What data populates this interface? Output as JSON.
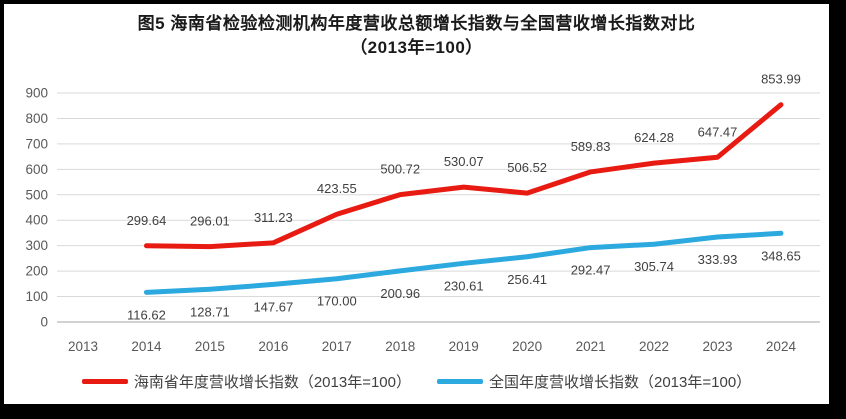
{
  "title": {
    "line1": "图5  海南省检验检测机构年度营收总额增长指数与全国营收增长指数对比",
    "line2": "（2013年=100）"
  },
  "chart_data": {
    "type": "line",
    "title": "图5 海南省检验检测机构年度营收总额增长指数与全国营收增长指数对比（2013年=100）",
    "categories": [
      "2013",
      "2014",
      "2015",
      "2016",
      "2017",
      "2018",
      "2019",
      "2020",
      "2021",
      "2022",
      "2023",
      "2024"
    ],
    "y_ticks": [
      0,
      100,
      200,
      300,
      400,
      500,
      600,
      700,
      800,
      900
    ],
    "ylim": [
      0,
      900
    ],
    "grid": true,
    "legend_position": "bottom",
    "series": [
      {
        "name": "海南省年度营收增长指数（2013年=100）",
        "color": "#e81b13",
        "start_category": "2014",
        "start_index": 1,
        "values": [
          299.64,
          296.01,
          311.23,
          423.55,
          500.72,
          530.07,
          506.52,
          589.83,
          624.28,
          647.47,
          853.99
        ]
      },
      {
        "name": "全国年度营收增长指数（2013年=100）",
        "color": "#2ca9de",
        "start_category": "2014",
        "start_index": 1,
        "values": [
          116.62,
          128.71,
          147.67,
          170.0,
          200.96,
          230.61,
          256.41,
          292.47,
          305.74,
          333.93,
          348.65
        ]
      }
    ]
  },
  "colors": {
    "gridline": "#d9d9d9",
    "zero_axis": "#a6a6a6",
    "tick_text": "#595959",
    "data_label_text": "#404040",
    "title_text": "#1a1a1a",
    "frame_border": "#000000"
  }
}
